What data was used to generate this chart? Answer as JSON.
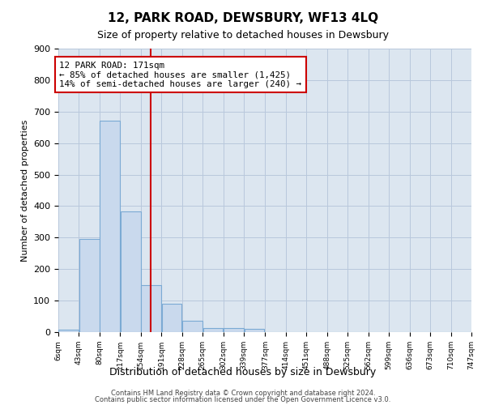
{
  "title": "12, PARK ROAD, DEWSBURY, WF13 4LQ",
  "subtitle": "Size of property relative to detached houses in Dewsbury",
  "xlabel": "Distribution of detached houses by size in Dewsbury",
  "ylabel": "Number of detached properties",
  "bar_color": "#c9d9ed",
  "bar_edge_color": "#7baad4",
  "grid_color": "#b8c8dc",
  "background_color": "#dce6f0",
  "bins": [
    6,
    43,
    80,
    117,
    154,
    191,
    228,
    265,
    302,
    339,
    377,
    414,
    451,
    488,
    525,
    562,
    599,
    636,
    673,
    710,
    747
  ],
  "counts": [
    7,
    295,
    672,
    383,
    150,
    90,
    37,
    13,
    13,
    11,
    0,
    0,
    0,
    0,
    0,
    0,
    0,
    0,
    0,
    0
  ],
  "property_size": 171,
  "vline_color": "#cc0000",
  "annotation_text": "12 PARK ROAD: 171sqm\n← 85% of detached houses are smaller (1,425)\n14% of semi-detached houses are larger (240) →",
  "annotation_box_color": "#ffffff",
  "annotation_box_edge_color": "#cc0000",
  "ylim": [
    0,
    900
  ],
  "yticks": [
    0,
    100,
    200,
    300,
    400,
    500,
    600,
    700,
    800,
    900
  ],
  "footer_line1": "Contains HM Land Registry data © Crown copyright and database right 2024.",
  "footer_line2": "Contains public sector information licensed under the Open Government Licence v3.0."
}
